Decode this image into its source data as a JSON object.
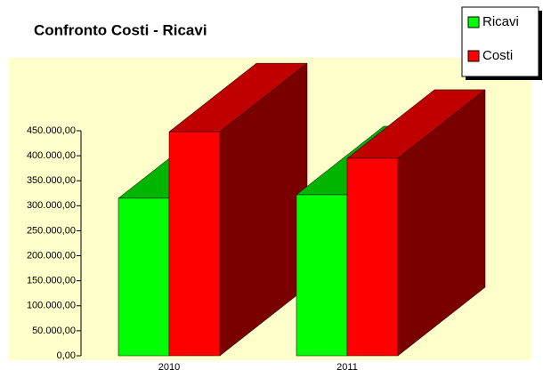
{
  "chart_data": {
    "type": "bar3d",
    "title": "Confronto Costi - Ricavi",
    "categories": [
      "2010",
      "2011"
    ],
    "series": [
      {
        "name": "Ricavi",
        "color": "#00ff00",
        "top_color": "#00b400",
        "side_color": "#007000",
        "values": [
          315000,
          322000
        ]
      },
      {
        "name": "Costi",
        "color": "#ff0000",
        "top_color": "#c00000",
        "side_color": "#7a0000",
        "values": [
          448000,
          395000
        ]
      }
    ],
    "ylim": [
      0,
      450000
    ],
    "yticks": [
      {
        "value": 0,
        "label": "0,00"
      },
      {
        "value": 50000,
        "label": "50.000,00"
      },
      {
        "value": 100000,
        "label": "100.000,00"
      },
      {
        "value": 150000,
        "label": "150.000,00"
      },
      {
        "value": 200000,
        "label": "200.000,00"
      },
      {
        "value": 250000,
        "label": "250.000,00"
      },
      {
        "value": 300000,
        "label": "300.000,00"
      },
      {
        "value": 350000,
        "label": "350.000,00"
      },
      {
        "value": 400000,
        "label": "400.000,00"
      },
      {
        "value": 450000,
        "label": "450.000,00"
      }
    ],
    "legend": "top-right",
    "background": "#ffffcc"
  }
}
